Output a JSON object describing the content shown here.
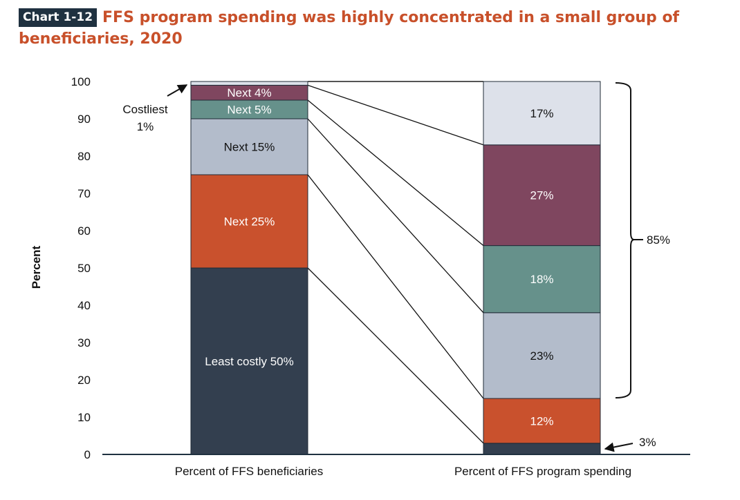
{
  "header": {
    "badge": "Chart 1-12",
    "title": "FFS program spending was highly concentrated in a small group of beneficiaries, 2020"
  },
  "chart_data": {
    "type": "bar",
    "stacked": true,
    "ylabel": "Percent",
    "ylim": [
      0,
      100
    ],
    "yticks": [
      0,
      10,
      20,
      30,
      40,
      50,
      60,
      70,
      80,
      90,
      100
    ],
    "categories": [
      "Percent of FFS beneficiaries",
      "Percent of FFS program spending"
    ],
    "series": [
      {
        "beneficiaries_label": "Least costly 50%",
        "values": [
          50,
          3
        ],
        "spending_label": "3%",
        "color": "#333f4f"
      },
      {
        "beneficiaries_label": "Next 25%",
        "values": [
          25,
          12
        ],
        "spending_label": "12%",
        "color": "#c9512d"
      },
      {
        "beneficiaries_label": "Next 15%",
        "values": [
          15,
          23
        ],
        "spending_label": "23%",
        "color": "#b3bccb"
      },
      {
        "beneficiaries_label": "Next 5%",
        "values": [
          5,
          18
        ],
        "spending_label": "18%",
        "color": "#66918b"
      },
      {
        "beneficiaries_label": "Next 4%",
        "values": [
          4,
          27
        ],
        "spending_label": "27%",
        "color": "#7f465f"
      },
      {
        "beneficiaries_label": "Costliest 1%",
        "values": [
          1,
          17
        ],
        "spending_label": "17%",
        "color": "#dde1ea"
      }
    ],
    "costliest_label_line1": "Costliest",
    "costliest_label_line2": "1%",
    "bracket_label": "85%"
  }
}
